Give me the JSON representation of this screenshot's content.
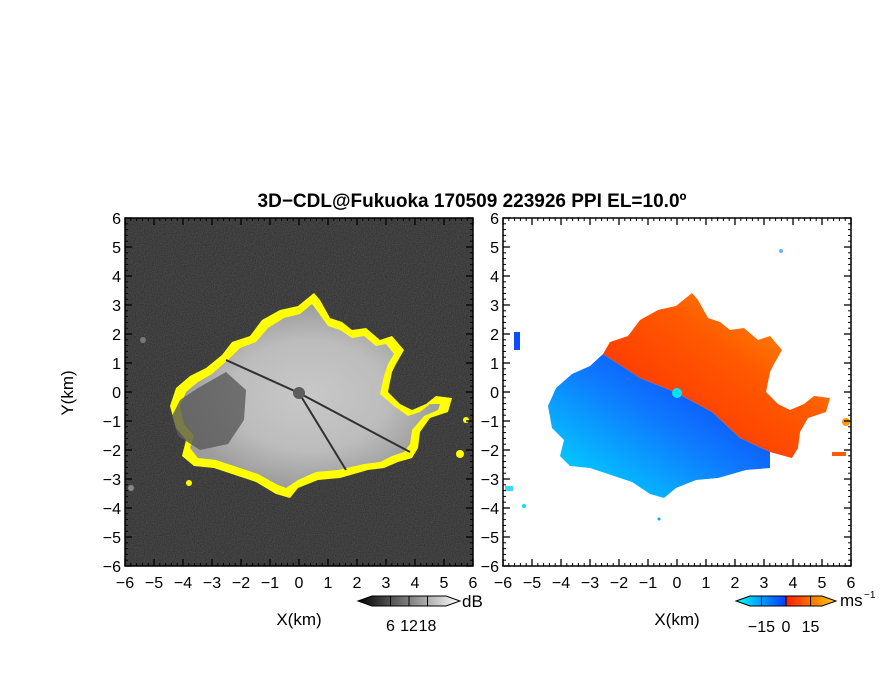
{
  "chart_data": {
    "type": "heatmap",
    "title": "3D−CDL@Fukuoka 170509 223926 PPI EL=10.0º",
    "panels": [
      {
        "name": "intensity",
        "xlabel": "X(km)",
        "ylabel": "Y(km)",
        "xlim": [
          -6,
          6
        ],
        "ylim": [
          -6,
          6
        ],
        "xticks": [
          "−6",
          "−5",
          "−4",
          "−3",
          "−2",
          "−1",
          "0",
          "1",
          "2",
          "3",
          "4",
          "5",
          "6"
        ],
        "yticks": [
          "6",
          "5",
          "4",
          "3",
          "2",
          "1",
          "0",
          "−1",
          "−2",
          "−3",
          "−4",
          "−5",
          "−6"
        ],
        "background": "#2a2a2a",
        "echo_colors": [
          "#dcdcdc",
          "#a8a8a8",
          "#ffff00"
        ],
        "colorbar": {
          "unit": "dB",
          "ticks": [
            "6",
            "12",
            "18"
          ],
          "range": [
            0,
            24
          ],
          "colors": [
            "#000000",
            "#ffffff"
          ]
        }
      },
      {
        "name": "doppler_velocity",
        "xlabel": "X(km)",
        "xlim": [
          -6,
          6
        ],
        "ylim": [
          -6,
          6
        ],
        "xticks": [
          "−6",
          "−5",
          "−4",
          "−3",
          "−2",
          "−1",
          "0",
          "1",
          "2",
          "3",
          "4",
          "5",
          "6"
        ],
        "yticks": [
          "6",
          "5",
          "4",
          "3",
          "2",
          "1",
          "0",
          "−1",
          "−2",
          "−3",
          "−4",
          "−5",
          "−6"
        ],
        "background": "#ffffff",
        "velocity_colors": [
          "#00e5ff",
          "#0d4bff",
          "#ff3000",
          "#ff9a00"
        ],
        "colorbar": {
          "unit": "ms",
          "unit_exponent": "−1",
          "ticks": [
            "−15",
            "0",
            "15"
          ],
          "range": [
            -22,
            22
          ],
          "colors": [
            "#00ffff",
            "#0044ff",
            "#ff2200",
            "#ffcc00"
          ]
        }
      }
    ]
  }
}
